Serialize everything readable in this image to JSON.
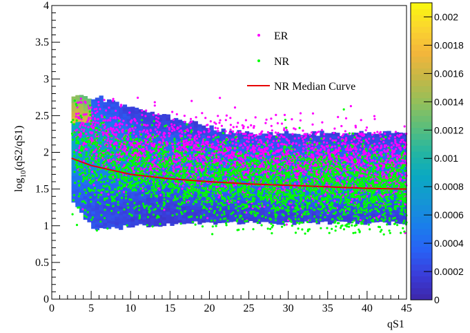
{
  "chart_data": {
    "type": "scatter",
    "xlabel": "qS1",
    "ylabel_main": "log",
    "ylabel_sub": "10",
    "ylabel_rest": "(qS2/qS1)",
    "xlim": [
      0,
      45
    ],
    "ylim": [
      0,
      4
    ],
    "x_ticks": [
      0,
      5,
      10,
      15,
      20,
      25,
      30,
      35,
      40,
      45
    ],
    "y_ticks": [
      0,
      0.5,
      1,
      1.5,
      2,
      2.5,
      3,
      3.5,
      4
    ],
    "x_tick_labels": [
      "0",
      "5",
      "10",
      "15",
      "20",
      "25",
      "30",
      "35",
      "40",
      "45"
    ],
    "y_tick_labels": [
      "0",
      "0.5",
      "1",
      "1.5",
      "2",
      "2.5",
      "3",
      "3.5",
      "4"
    ],
    "colorbar": {
      "range": [
        0,
        0.0021
      ],
      "ticks": [
        0,
        0.0002,
        0.0004,
        0.0006,
        0.0008,
        0.001,
        0.0012,
        0.0014,
        0.0016,
        0.0018,
        0.002
      ],
      "tick_labels": [
        "0",
        "0.0002",
        "0.0004",
        "0.0006",
        "0.0008",
        "0.001",
        "0.0012",
        "0.0014",
        "0.0016",
        "0.0018",
        "0.002"
      ]
    },
    "series": [
      {
        "name": "ER",
        "kind": "points",
        "color": "#ff00ff",
        "x_range": [
          2.8,
          45
        ],
        "y_band_center": [
          [
            3,
            2.35
          ],
          [
            10,
            2.05
          ],
          [
            20,
            1.9
          ],
          [
            30,
            1.85
          ],
          [
            45,
            1.78
          ]
        ],
        "y_band_width": 0.25
      },
      {
        "name": "NR",
        "kind": "points",
        "color": "#00ff00",
        "x_range": [
          2.5,
          45
        ],
        "y_band_center": [
          [
            3,
            1.9
          ],
          [
            10,
            1.72
          ],
          [
            20,
            1.6
          ],
          [
            30,
            1.53
          ],
          [
            45,
            1.5
          ]
        ],
        "y_band_width": 0.28
      },
      {
        "name": "NR Median Curve",
        "kind": "line",
        "color": "#ff0000",
        "x": [
          2.5,
          5,
          10,
          15,
          20,
          25,
          30,
          35,
          40,
          45
        ],
        "y": [
          1.92,
          1.82,
          1.7,
          1.64,
          1.6,
          1.57,
          1.55,
          1.53,
          1.51,
          1.5
        ]
      }
    ],
    "legend": {
      "position": "top-right",
      "entries": [
        "ER",
        "NR",
        "NR Median Curve"
      ]
    }
  }
}
